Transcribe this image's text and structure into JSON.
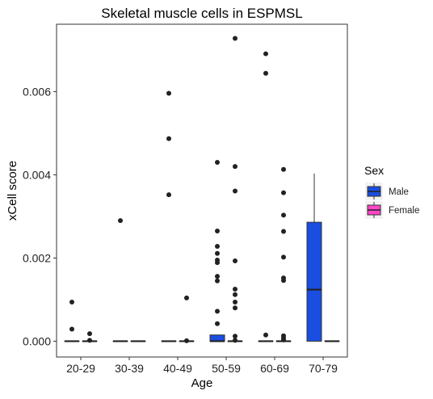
{
  "chart_data": {
    "type": "boxplot",
    "title": "Skeletal muscle cells in ESPMSL",
    "xlabel": "Age",
    "ylabel": "xCell score",
    "categories": [
      "20-29",
      "30-39",
      "40-49",
      "50-59",
      "60-69",
      "70-79"
    ],
    "yticks": [
      "0.000",
      "0.002",
      "0.004",
      "0.006"
    ],
    "ylim": [
      -0.00038,
      0.00762
    ],
    "grid": false,
    "legend": {
      "title": "Sex",
      "position": "right",
      "entries": [
        {
          "label": "Male",
          "color": "#1a4ee0"
        },
        {
          "label": "Female",
          "color": "#ff45c8"
        }
      ]
    },
    "series": [
      {
        "name": "Male",
        "color": "#1a4ee0",
        "boxes": [
          {
            "category": "20-29",
            "q1": 0,
            "median": 0,
            "q3": 0,
            "whisker_low": 0,
            "whisker_high": 0,
            "outliers": [
              0.00094,
              0.00029
            ]
          },
          {
            "category": "30-39",
            "q1": 0,
            "median": 0,
            "q3": 0,
            "whisker_low": 0,
            "whisker_high": 0,
            "outliers": [
              0.0029
            ]
          },
          {
            "category": "40-49",
            "q1": 0,
            "median": 0,
            "q3": 0,
            "whisker_low": 0,
            "whisker_high": 0,
            "outliers": [
              0.00596,
              0.00487,
              0.00352
            ]
          },
          {
            "category": "50-59",
            "q1": 0,
            "median": 0,
            "q3": 0.00015,
            "whisker_low": 0,
            "whisker_high": 0.00015,
            "outliers": [
              0.0043,
              0.00265,
              0.00228,
              0.00211,
              0.00195,
              0.00189,
              0.00156,
              0.00145,
              0.00072,
              0.00042
            ]
          },
          {
            "category": "60-69",
            "q1": 0,
            "median": 0,
            "q3": 0,
            "whisker_low": 0,
            "whisker_high": 0,
            "outliers": [
              0.00691,
              0.00644,
              0.00015
            ]
          },
          {
            "category": "70-79",
            "q1": 0,
            "median": 0.00124,
            "q3": 0.00286,
            "whisker_low": 0,
            "whisker_high": 0.00403,
            "outliers": []
          }
        ]
      },
      {
        "name": "Female",
        "color": "#ff45c8",
        "boxes": [
          {
            "category": "20-29",
            "q1": 0,
            "median": 0,
            "q3": 0,
            "whisker_low": 0,
            "whisker_high": 0,
            "outliers": [
              0.00018,
              2e-05
            ]
          },
          {
            "category": "30-39",
            "q1": 0,
            "median": 0,
            "q3": 0,
            "whisker_low": 0,
            "whisker_high": 0,
            "outliers": []
          },
          {
            "category": "40-49",
            "q1": 0,
            "median": 0,
            "q3": 0,
            "whisker_low": 0,
            "whisker_high": 0,
            "outliers": [
              0.00104,
              1e-05
            ]
          },
          {
            "category": "50-59",
            "q1": 0,
            "median": 0,
            "q3": 0,
            "whisker_low": 0,
            "whisker_high": 0,
            "outliers": [
              0.00728,
              0.0042,
              0.00361,
              0.00193,
              0.00125,
              0.00112,
              0.00094,
              0.0008,
              0.00012,
              2e-05
            ]
          },
          {
            "category": "60-69",
            "q1": 0,
            "median": 0,
            "q3": 0,
            "whisker_low": 0,
            "whisker_high": 0,
            "outliers": [
              0.00413,
              0.00357,
              0.00303,
              0.00264,
              0.00202,
              0.00152,
              0.00146,
              0.00013,
              8e-05,
              3e-05
            ]
          },
          {
            "category": "70-79",
            "q1": 0,
            "median": 0,
            "q3": 0,
            "whisker_low": 0,
            "whisker_high": 0,
            "outliers": []
          }
        ]
      }
    ]
  }
}
